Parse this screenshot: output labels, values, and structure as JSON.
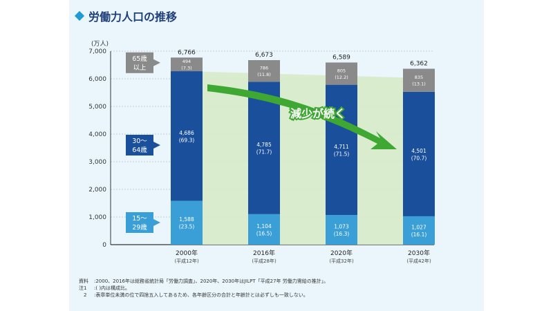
{
  "title": "労働力人口の推移",
  "chart_data": {
    "type": "bar",
    "stacked": true,
    "title": "労働力人口の推移",
    "ylabel": "(万人)",
    "ylim": [
      0,
      7000
    ],
    "yticks": [
      0,
      1000,
      2000,
      3000,
      4000,
      5000,
      6000,
      7000
    ],
    "ytick_labels": [
      "0",
      "1,000",
      "2,000",
      "3,000",
      "4,000",
      "5,000",
      "6,000",
      "7,000"
    ],
    "categories": [
      "2000年",
      "2016年",
      "2020年",
      "2030年"
    ],
    "category_sublabels": [
      "(平成12年)",
      "(平成28年)",
      "(平成32年)",
      "(平成42年)"
    ],
    "totals": [
      6766,
      6673,
      6589,
      6362
    ],
    "total_labels": [
      "6,766",
      "6,673",
      "6,589",
      "6,362"
    ],
    "series": [
      {
        "name": "15〜29歳",
        "legend_lines": [
          "15〜",
          "29歳"
        ],
        "color": "#3a9fd6",
        "values": [
          1588,
          1104,
          1073,
          1027
        ],
        "value_labels": [
          "1,588",
          "1,104",
          "1,073",
          "1,027"
        ],
        "share_labels": [
          "(23.5)",
          "(16.5)",
          "(16.3)",
          "(16.1)"
        ]
      },
      {
        "name": "30〜64歳",
        "legend_lines": [
          "30〜",
          "64歳"
        ],
        "color": "#1a4f9c",
        "values": [
          4686,
          4785,
          4711,
          4501
        ],
        "value_labels": [
          "4,686",
          "4,785",
          "4,711",
          "4,501"
        ],
        "share_labels": [
          "(69.3)",
          "(71.7)",
          "(71.5)",
          "(70.7)"
        ]
      },
      {
        "name": "65歳以上",
        "legend_lines": [
          "65歳",
          "以上"
        ],
        "color": "#8a8a8a",
        "values": [
          494,
          786,
          805,
          835
        ],
        "value_labels": [
          "494",
          "786",
          "805",
          "835"
        ],
        "share_labels": [
          "(7.3)",
          "(11.8)",
          "(12.2)",
          "(13.1)"
        ]
      }
    ],
    "trend_annotation": "減少が続く",
    "colors": {
      "band": "#d8ebc9",
      "arrow": "#3ea832",
      "grid": "#9aa6b0"
    }
  },
  "notes": [
    {
      "label": "資料",
      "text": ":2000、2016年は総務省統計局「労働力調査」、2020年、2030年はJILPT「平成27年 労働力需給の推計」。"
    },
    {
      "label": "注1",
      "text": ":( )内は構成比。"
    },
    {
      "label": "　2",
      "text": ":表章単位未満の位で四捨五入してあるため、各年齢区分の合計と年齢計とは必ずしも一致しない。"
    }
  ]
}
